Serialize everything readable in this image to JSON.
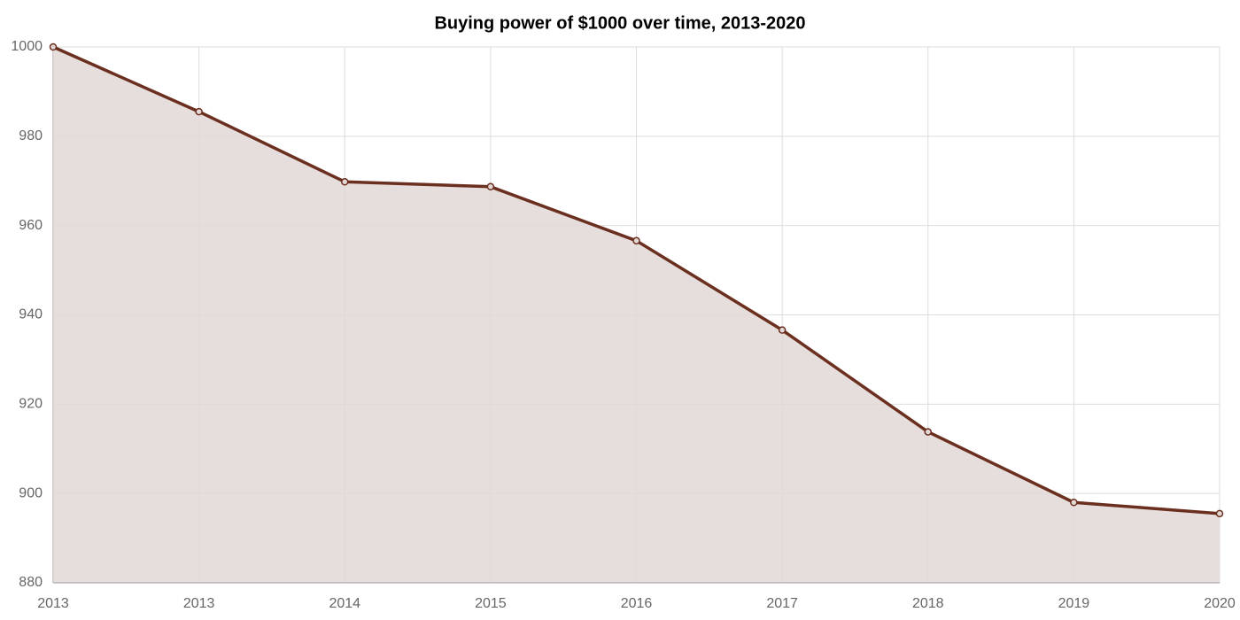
{
  "chart_data": {
    "type": "area",
    "title": "Buying power of $1000 over time, 2013-2020",
    "categories": [
      "2013",
      "2013",
      "2014",
      "2015",
      "2016",
      "2017",
      "2018",
      "2019",
      "2020"
    ],
    "values": [
      1000,
      985.5,
      969.8,
      968.7,
      956.6,
      936.6,
      913.8,
      898,
      895.5
    ],
    "color": "#6b2f1f",
    "fill_color": "#e2d8d6",
    "ylim": [
      880,
      1000
    ],
    "yticks": [
      880,
      900,
      920,
      940,
      960,
      980,
      1000
    ],
    "grid": true
  }
}
